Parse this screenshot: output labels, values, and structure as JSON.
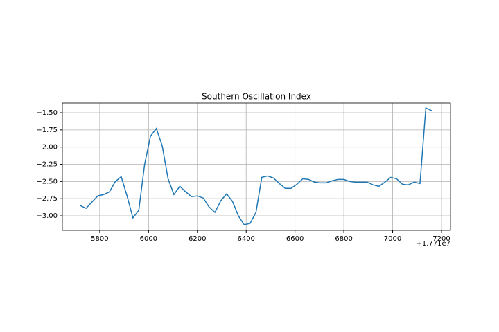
{
  "chart_data": {
    "type": "line",
    "title": "Southern Oscillation Index",
    "x": [
      17715720,
      17715744,
      17715768,
      17715792,
      17715816,
      17715840,
      17715864,
      17715888,
      17715912,
      17715936,
      17715960,
      17715984,
      17716008,
      17716032,
      17716056,
      17716080,
      17716104,
      17716128,
      17716152,
      17716176,
      17716200,
      17716224,
      17716248,
      17716272,
      17716296,
      17716320,
      17716344,
      17716368,
      17716392,
      17716416,
      17716440,
      17716464,
      17716488,
      17716512,
      17716536,
      17716560,
      17716584,
      17716608,
      17716632,
      17716656,
      17716680,
      17716704,
      17716728,
      17716752,
      17716776,
      17716800,
      17716824,
      17716848,
      17716872,
      17716896,
      17716920,
      17716944,
      17716968,
      17716992,
      17717016,
      17717040,
      17717064,
      17717088,
      17717112,
      17717136,
      17717160
    ],
    "series": [
      {
        "color": "#1f77b4",
        "values": [
          -2.85,
          -2.89,
          -2.8,
          -2.71,
          -2.69,
          -2.65,
          -2.5,
          -2.43,
          -2.71,
          -3.03,
          -2.92,
          -2.25,
          -1.84,
          -1.73,
          -1.98,
          -2.46,
          -2.69,
          -2.57,
          -2.65,
          -2.72,
          -2.71,
          -2.74,
          -2.87,
          -2.95,
          -2.78,
          -2.68,
          -2.79,
          -3.0,
          -3.13,
          -3.11,
          -2.95,
          -2.44,
          -2.42,
          -2.45,
          -2.53,
          -2.6,
          -2.6,
          -2.54,
          -2.46,
          -2.47,
          -2.51,
          -2.52,
          -2.52,
          -2.49,
          -2.47,
          -2.47,
          -2.5,
          -2.51,
          -2.51,
          -2.51,
          -2.55,
          -2.57,
          -2.51,
          -2.44,
          -2.46,
          -2.54,
          -2.55,
          -2.51,
          -2.53,
          -1.43,
          -1.47
        ]
      }
    ],
    "xlim": [
      17715647,
      17717237
    ],
    "xticks": [
      {
        "value": 17715800,
        "label": "5800"
      },
      {
        "value": 17716000,
        "label": "6000"
      },
      {
        "value": 17716200,
        "label": "6200"
      },
      {
        "value": 17716400,
        "label": "6400"
      },
      {
        "value": 17716600,
        "label": "6600"
      },
      {
        "value": 17716800,
        "label": "6800"
      },
      {
        "value": 17717000,
        "label": "7000"
      },
      {
        "value": 17717200,
        "label": "7200"
      }
    ],
    "x_offset_label": "+1.771e7",
    "ylim": [
      -3.211,
      -1.359
    ],
    "yticks": [
      {
        "value": -1.5,
        "label": "−1.50"
      },
      {
        "value": -1.75,
        "label": "−1.75"
      },
      {
        "value": -2.0,
        "label": "−2.00"
      },
      {
        "value": -2.25,
        "label": "−2.25"
      },
      {
        "value": -2.5,
        "label": "−2.50"
      },
      {
        "value": -2.75,
        "label": "−2.75"
      },
      {
        "value": -3.0,
        "label": "−3.00"
      }
    ],
    "grid": true
  }
}
